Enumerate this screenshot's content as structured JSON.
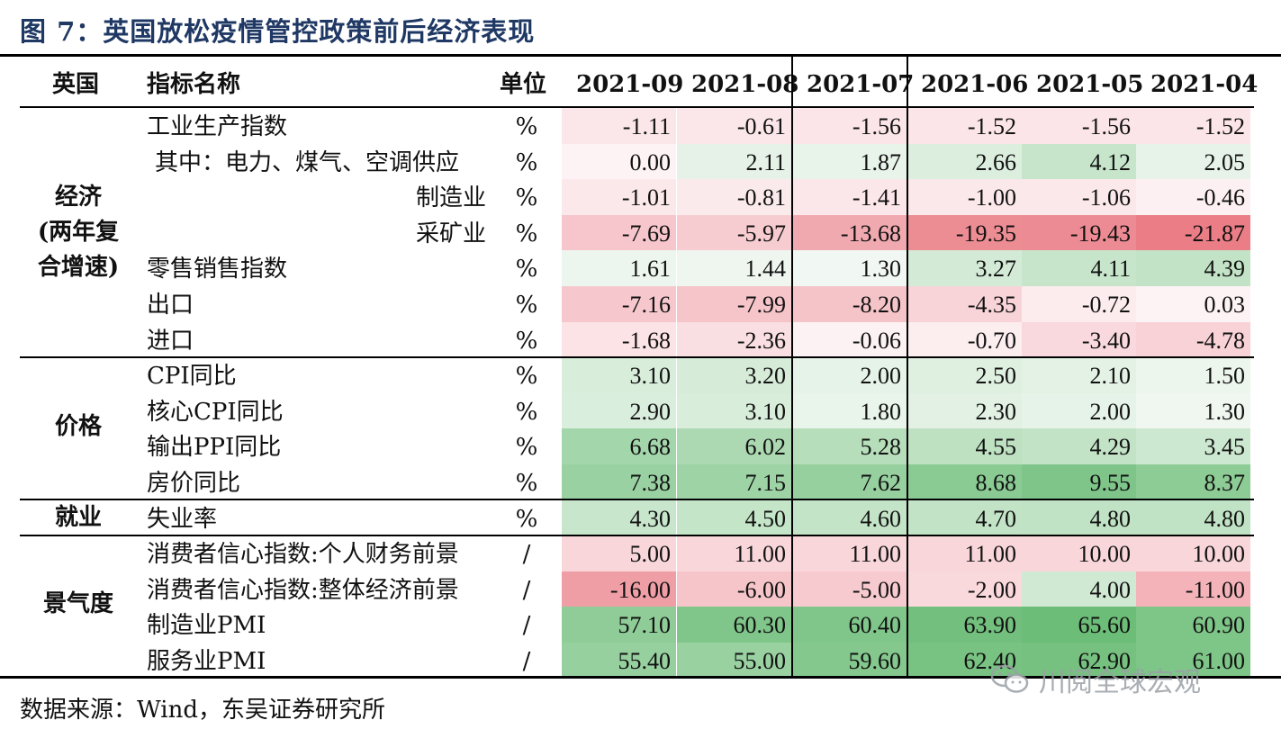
{
  "title": "图 7：英国放松疫情管控政策前后经济表现",
  "header": {
    "country": "英国",
    "indicator": "指标名称",
    "unit": "单位",
    "months": [
      "2021-09",
      "2021-08",
      "2021-07",
      "2021-06",
      "2021-05",
      "2021-04"
    ]
  },
  "groups": [
    {
      "label_lines": [
        "经济",
        "(两年复",
        "合增速)"
      ]
    },
    {
      "label_lines": [
        "价格"
      ]
    },
    {
      "label_lines": [
        "就业"
      ]
    },
    {
      "label_lines": [
        "景气度"
      ]
    }
  ],
  "rows": [
    {
      "name": "工业生产指数",
      "unit": "%",
      "values": [
        "-1.11",
        "-0.61",
        "-1.56",
        "-1.52",
        "-1.56",
        "-1.52"
      ],
      "colors": [
        "#fbe7ea",
        "#fbe7ea",
        "#fbe5e8",
        "#fbe5e8",
        "#fbe5e8",
        "#fbe5e8"
      ]
    },
    {
      "name": "其中：电力、煤气、空调供应",
      "unit": "%",
      "values": [
        "0.00",
        "2.11",
        "1.87",
        "2.66",
        "4.12",
        "2.05"
      ],
      "colors": [
        "#fdf3f4",
        "#e6f2e7",
        "#e8f3e9",
        "#dcefdf",
        "#c6e5ca",
        "#e7f3e8"
      ]
    },
    {
      "name": "制造业",
      "unit": "%",
      "values": [
        "-1.01",
        "-0.81",
        "-1.41",
        "-1.00",
        "-1.06",
        "-0.46"
      ],
      "colors": [
        "#fbe8eb",
        "#fbeaec",
        "#fbe6e9",
        "#fbe8eb",
        "#fbe8eb",
        "#fcf0f2"
      ]
    },
    {
      "name": "采矿业",
      "unit": "%",
      "values": [
        "-7.69",
        "-5.97",
        "-13.68",
        "-19.35",
        "-19.43",
        "-21.87"
      ],
      "colors": [
        "#f6c6cc",
        "#f7ccd1",
        "#f1a9b0",
        "#ec8c93",
        "#ec8b93",
        "#ea7d85"
      ]
    },
    {
      "name": "零售销售指数",
      "unit": "%",
      "values": [
        "1.61",
        "1.44",
        "1.30",
        "3.27",
        "4.11",
        "4.39"
      ],
      "colors": [
        "#edf6ee",
        "#eff6f0",
        "#f1f7f2",
        "#d3ebd6",
        "#c6e5ca",
        "#c3e3c7"
      ]
    },
    {
      "name": "出口",
      "unit": "%",
      "values": [
        "-7.16",
        "-7.99",
        "-8.20",
        "-4.35",
        "-0.72",
        "0.03"
      ],
      "colors": [
        "#f6c8cd",
        "#f6c5ca",
        "#f5c4c9",
        "#f8d4d8",
        "#fcecee",
        "#fdf3f4"
      ]
    },
    {
      "name": "进口",
      "unit": "%",
      "values": [
        "-1.68",
        "-2.36",
        "-0.06",
        "-0.70",
        "-3.40",
        "-4.78"
      ],
      "colors": [
        "#fbe3e6",
        "#fadfe2",
        "#fdf2f3",
        "#fcedef",
        "#f9d9dd",
        "#f8d2d6"
      ]
    },
    {
      "name": "CPI同比",
      "unit": "%",
      "values": [
        "3.10",
        "3.20",
        "2.00",
        "2.50",
        "2.10",
        "1.50"
      ],
      "colors": [
        "#d8edda",
        "#d6ecd9",
        "#e6f3e8",
        "#dff0e1",
        "#e4f2e6",
        "#ecf6ed"
      ]
    },
    {
      "name": "核心CPI同比",
      "unit": "%",
      "values": [
        "2.90",
        "3.10",
        "1.80",
        "2.30",
        "2.00",
        "1.30"
      ],
      "colors": [
        "#daeedd",
        "#d8edda",
        "#e9f4ea",
        "#e2f1e4",
        "#e6f3e8",
        "#f0f7f1"
      ]
    },
    {
      "name": "输出PPI同比",
      "unit": "%",
      "values": [
        "6.68",
        "6.02",
        "5.28",
        "4.55",
        "4.29",
        "3.45"
      ],
      "colors": [
        "#a4d6ab",
        "#acd9b2",
        "#b6deba",
        "#bee1c2",
        "#c2e3c6",
        "#cde8d0"
      ]
    },
    {
      "name": "房价同比",
      "unit": "%",
      "values": [
        "7.38",
        "7.15",
        "7.62",
        "8.68",
        "9.55",
        "8.37"
      ],
      "colors": [
        "#9ad1a2",
        "#9dd3a5",
        "#97d09f",
        "#8aca93",
        "#7fc589",
        "#8ecc96"
      ]
    },
    {
      "name": "失业率",
      "unit": "%",
      "values": [
        "4.30",
        "4.50",
        "4.60",
        "4.70",
        "4.80",
        "4.80"
      ],
      "colors": [
        "#c8e6cc",
        "#c5e5c9",
        "#c4e4c8",
        "#c2e3c6",
        "#c1e3c5",
        "#c1e3c5"
      ]
    },
    {
      "name": "消费者信心指数:个人财务前景",
      "unit": "/",
      "values": [
        "5.00",
        "11.00",
        "11.00",
        "11.00",
        "10.00",
        "10.00"
      ],
      "colors": [
        "#f8d6da",
        "#f8d6da",
        "#f8d6da",
        "#f8d6da",
        "#f8d6da",
        "#f8d6da"
      ]
    },
    {
      "name": "消费者信心指数:整体经济前景",
      "unit": "/",
      "values": [
        "-16.00",
        "-6.00",
        "-5.00",
        "-2.00",
        "4.00",
        "-11.00"
      ],
      "colors": [
        "#ef9ea5",
        "#f6c5ca",
        "#f7cacf",
        "#fad9dc",
        "#d0e9d3",
        "#f3b3b9"
      ]
    },
    {
      "name": "制造业PMI",
      "unit": "/",
      "values": [
        "57.10",
        "60.30",
        "60.40",
        "63.90",
        "65.60",
        "60.90"
      ],
      "colors": [
        "#8fcc97",
        "#80c68a",
        "#80c68a",
        "#73c07e",
        "#6bbd77",
        "#7ec588"
      ]
    },
    {
      "name": "服务业PMI",
      "unit": "/",
      "values": [
        "55.40",
        "55.00",
        "59.60",
        "62.40",
        "62.90",
        "61.00"
      ],
      "colors": [
        "#97d09f",
        "#99d1a1",
        "#84c88d",
        "#78c282",
        "#76c180",
        "#7ec588"
      ]
    }
  ],
  "source": "数据来源：Wind，东吴证券研究所",
  "watermark": "川阅全球宏观",
  "watermark_icon": "wechat-icon"
}
